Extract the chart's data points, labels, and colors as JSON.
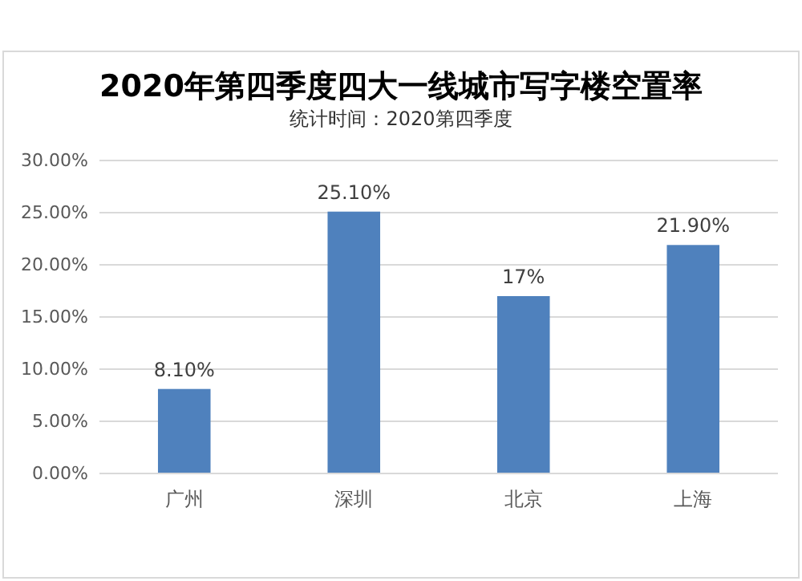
{
  "chart_data": {
    "type": "bar",
    "title": "2020年第四季度四大一线城市写字楼空置率",
    "subtitle": "统计时间：2020第四季度",
    "categories": [
      "广州",
      "深圳",
      "北京",
      "上海"
    ],
    "values": [
      8.1,
      25.1,
      17,
      21.9
    ],
    "value_labels": [
      "8.10%",
      "25.10%",
      "17%",
      "21.90%"
    ],
    "color": "#4f81bd",
    "ylim": [
      0,
      30
    ],
    "yticks": [
      {
        "value": 0,
        "label": "0.00%"
      },
      {
        "value": 5,
        "label": "5.00%"
      },
      {
        "value": 10,
        "label": "10.00%"
      },
      {
        "value": 15,
        "label": "15.00%"
      },
      {
        "value": 20,
        "label": "20.00%"
      },
      {
        "value": 25,
        "label": "25.00%"
      },
      {
        "value": 30,
        "label": "30.00%"
      }
    ],
    "grid": "y"
  }
}
